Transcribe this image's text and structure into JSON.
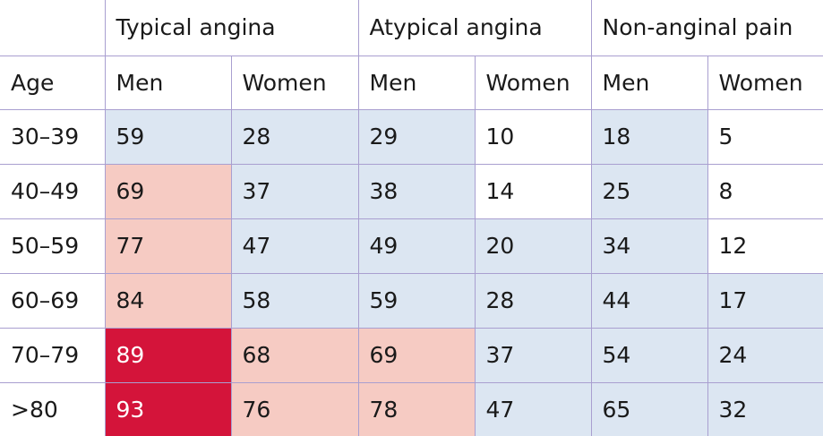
{
  "table": {
    "groups": [
      "Typical angina",
      "Atypical angina",
      "Non-anginal pain"
    ],
    "header": [
      "Age",
      "Men",
      "Women",
      "Men",
      "Women",
      "Men",
      "Women"
    ],
    "rows": [
      [
        "30–39",
        59,
        28,
        29,
        10,
        18,
        5
      ],
      [
        "40–49",
        69,
        37,
        38,
        14,
        25,
        8
      ],
      [
        "50–59",
        77,
        47,
        49,
        20,
        34,
        12
      ],
      [
        "60–69",
        84,
        58,
        59,
        28,
        44,
        17
      ],
      [
        "70–79",
        89,
        68,
        69,
        37,
        54,
        24
      ],
      [
        ">80",
        93,
        76,
        78,
        47,
        65,
        32
      ]
    ],
    "fills": [
      [
        "#ffffff",
        "#dce6f2",
        "#dce6f2",
        "#dce6f2",
        "#ffffff",
        "#dce6f2",
        "#ffffff"
      ],
      [
        "#ffffff",
        "#f6cbc3",
        "#dce6f2",
        "#dce6f2",
        "#ffffff",
        "#dce6f2",
        "#ffffff"
      ],
      [
        "#ffffff",
        "#f6cbc3",
        "#dce6f2",
        "#dce6f2",
        "#dce6f2",
        "#dce6f2",
        "#ffffff"
      ],
      [
        "#ffffff",
        "#f6cbc3",
        "#dce6f2",
        "#dce6f2",
        "#dce6f2",
        "#dce6f2",
        "#dce6f2"
      ],
      [
        "#ffffff",
        "#d4143a",
        "#f6cbc3",
        "#f6cbc3",
        "#dce6f2",
        "#dce6f2",
        "#dce6f2"
      ],
      [
        "#ffffff",
        "#d4143a",
        "#f6cbc3",
        "#f6cbc3",
        "#dce6f2",
        "#dce6f2",
        "#dce6f2"
      ]
    ]
  }
}
